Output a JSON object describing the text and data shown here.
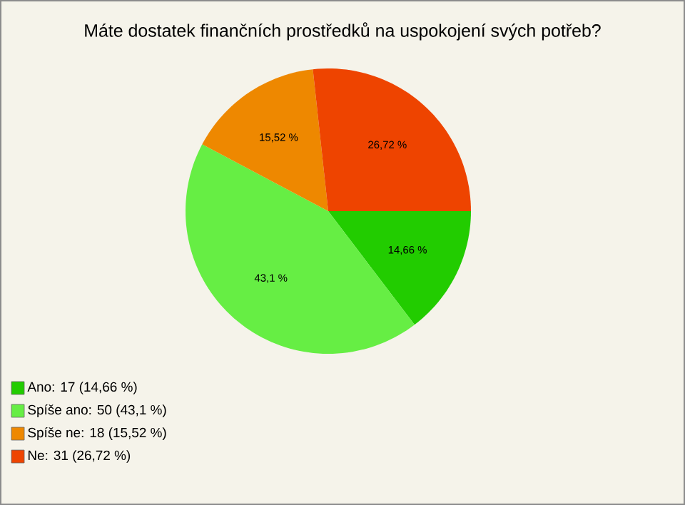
{
  "chart_data": {
    "type": "pie",
    "title": "Máte dostatek finančních prostředků na uspokojení svých potřeb?",
    "categories": [
      "Ano: 17 (14,66 %)",
      "Spíše ano: 50 (43,1 %)",
      "Spíše ne: 18 (15,52 %)",
      "Ne: 31 (26,72 %)"
    ],
    "values": [
      14.66,
      43.1,
      15.52,
      26.72
    ],
    "value_labels": [
      "14,66 %",
      "43,1 %",
      "15,52 %",
      "26,72 %"
    ],
    "colors": [
      "#22cc00",
      "#66ee44",
      "#ee8800",
      "#ee4400"
    ],
    "legend": "bottom left"
  }
}
